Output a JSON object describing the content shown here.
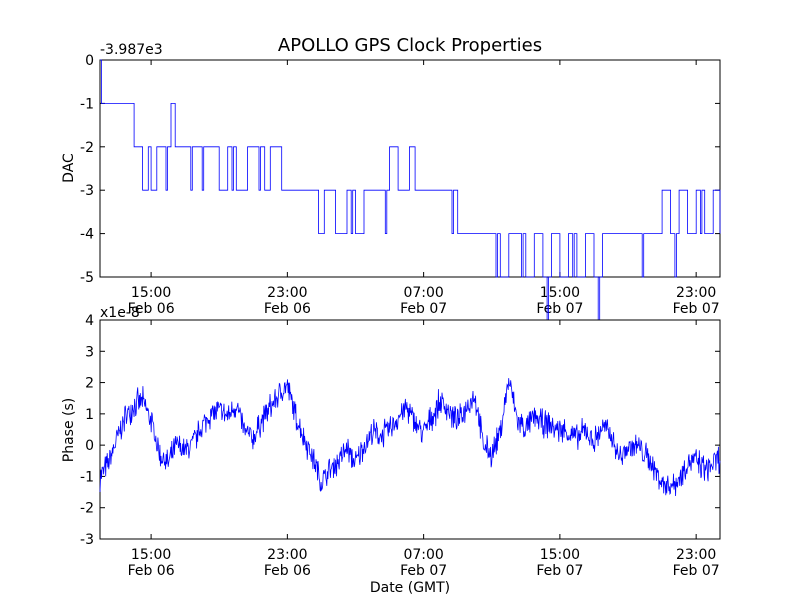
{
  "figure": {
    "title": "APOLLO GPS Clock Properties",
    "line_color": "#0000ff",
    "line_color_subplot2": "#0000ff"
  },
  "chart_data": [
    {
      "type": "line",
      "ylabel": "DAC",
      "xlabel": "",
      "offset_label": "-3.987e3",
      "ylim": [
        -5,
        0
      ],
      "yticks": [
        0,
        -1,
        -2,
        -3,
        -4,
        -5
      ],
      "ytick_labels": [
        "0",
        "-1",
        "-2",
        "-3",
        "-4",
        "-5"
      ],
      "xlim_hours": [
        12,
        36.4
      ],
      "xtick_labels": [
        {
          "time": "15:00",
          "date": "Feb 06"
        },
        {
          "time": "23:00",
          "date": "Feb 06"
        },
        {
          "time": "07:00",
          "date": "Feb 07"
        },
        {
          "time": "15:00",
          "date": "Feb 07"
        },
        {
          "time": "23:00",
          "date": "Feb 07"
        }
      ],
      "grid": false,
      "series": [
        {
          "x": [
            "2014-02-06T12:00",
            "2014-02-06T12:05",
            "2014-02-06T13:00",
            "2014-02-06T14:00",
            "2014-02-06T14:15",
            "2014-02-06T14:30",
            "2014-02-06T14:50",
            "2014-02-06T15:00",
            "2014-02-06T15:20",
            "2014-02-06T15:35",
            "2014-02-06T16:10",
            "2014-02-06T16:25",
            "2014-02-06T17:00",
            "2014-02-06T18:40",
            "2014-02-06T19:00",
            "2014-02-06T19:30",
            "2014-02-06T20:00",
            "2014-02-06T20:40",
            "2014-02-06T21:00",
            "2014-02-06T21:40",
            "2014-02-06T22:00",
            "2014-02-06T22:40",
            "2014-02-06T23:00",
            "2014-02-07T00:00",
            "2014-02-07T00:50",
            "2014-02-07T01:10",
            "2014-02-07T01:50",
            "2014-02-07T02:30",
            "2014-02-07T03:00",
            "2014-02-07T03:30",
            "2014-02-07T04:30",
            "2014-02-07T05:00",
            "2014-02-07T05:30",
            "2014-02-07T06:10",
            "2014-02-07T06:30",
            "2014-02-07T07:30",
            "2014-02-07T08:20",
            "2014-02-07T09:00",
            "2014-02-07T10:00",
            "2014-02-07T11:00",
            "2014-02-07T11:30",
            "2014-02-07T12:00",
            "2014-02-07T12:30",
            "2014-02-07T13:00",
            "2014-02-07T13:30",
            "2014-02-07T14:00",
            "2014-02-07T14:30",
            "2014-02-07T15:00",
            "2014-02-07T15:30",
            "2014-02-07T16:00",
            "2014-02-07T16:30",
            "2014-02-07T17:00",
            "2014-02-07T17:30",
            "2014-02-07T18:30",
            "2014-02-07T19:30",
            "2014-02-07T20:30",
            "2014-02-07T21:00",
            "2014-02-07T21:30",
            "2014-02-07T22:00",
            "2014-02-07T22:30",
            "2014-02-07T23:00",
            "2014-02-07T23:30",
            "2014-02-08T00:00",
            "2014-02-08T00:24"
          ],
          "y": [
            0,
            -1,
            -1,
            -2,
            -2,
            -3,
            -2,
            -3,
            -2,
            -2,
            -1,
            -2,
            -2,
            -2,
            -3,
            -2,
            -3,
            -2,
            -2,
            -3,
            -2,
            -3,
            -3,
            -3,
            -4,
            -3,
            -4,
            -3,
            -4,
            -3,
            -3,
            -2,
            -3,
            -2,
            -3,
            -3,
            -3,
            -4,
            -4,
            -4,
            -5,
            -4,
            -4,
            -5,
            -4,
            -5,
            -4,
            -5,
            -4,
            -5,
            -4,
            -5,
            -4,
            -4,
            -4,
            -4,
            -3,
            -4,
            -3,
            -4,
            -3,
            -4,
            -3,
            -4
          ]
        }
      ]
    },
    {
      "type": "line",
      "ylabel": "Phase (s)",
      "xlabel": "Date (GMT)",
      "offset_label": "x1e-8",
      "ylim": [
        -3,
        4
      ],
      "yticks": [
        4,
        3,
        2,
        1,
        0,
        -1,
        -2,
        -3
      ],
      "ytick_labels": [
        "4",
        "3",
        "2",
        "1",
        "0",
        "-1",
        "-2",
        "-3"
      ],
      "xlim_hours": [
        12,
        36.4
      ],
      "xtick_labels": [
        {
          "time": "15:00",
          "date": "Feb 06"
        },
        {
          "time": "23:00",
          "date": "Feb 06"
        },
        {
          "time": "07:00",
          "date": "Feb 07"
        },
        {
          "time": "15:00",
          "date": "Feb 07"
        },
        {
          "time": "23:00",
          "date": "Feb 07"
        }
      ],
      "grid": false,
      "series": [
        {
          "x": [
            "2014-02-06T12:00",
            "2014-02-06T12:30",
            "2014-02-06T13:00",
            "2014-02-06T13:30",
            "2014-02-06T14:00",
            "2014-02-06T14:30",
            "2014-02-06T15:00",
            "2014-02-06T15:30",
            "2014-02-06T16:00",
            "2014-02-06T16:30",
            "2014-02-06T17:00",
            "2014-02-06T17:30",
            "2014-02-06T18:00",
            "2014-02-06T18:30",
            "2014-02-06T19:00",
            "2014-02-06T19:30",
            "2014-02-06T20:00",
            "2014-02-06T20:30",
            "2014-02-06T21:00",
            "2014-02-06T21:30",
            "2014-02-06T22:00",
            "2014-02-06T22:30",
            "2014-02-06T23:00",
            "2014-02-06T23:30",
            "2014-02-07T00:00",
            "2014-02-07T00:30",
            "2014-02-07T01:00",
            "2014-02-07T01:30",
            "2014-02-07T02:00",
            "2014-02-07T02:30",
            "2014-02-07T03:00",
            "2014-02-07T03:30",
            "2014-02-07T04:00",
            "2014-02-07T04:30",
            "2014-02-07T05:00",
            "2014-02-07T05:30",
            "2014-02-07T06:00",
            "2014-02-07T06:30",
            "2014-02-07T07:00",
            "2014-02-07T07:30",
            "2014-02-07T08:00",
            "2014-02-07T08:30",
            "2014-02-07T09:00",
            "2014-02-07T09:30",
            "2014-02-07T10:00",
            "2014-02-07T10:30",
            "2014-02-07T11:00",
            "2014-02-07T11:30",
            "2014-02-07T12:00",
            "2014-02-07T12:30",
            "2014-02-07T13:00",
            "2014-02-07T13:30",
            "2014-02-07T14:00",
            "2014-02-07T14:30",
            "2014-02-07T15:00",
            "2014-02-07T15:30",
            "2014-02-07T16:00",
            "2014-02-07T16:30",
            "2014-02-07T17:00",
            "2014-02-07T17:30",
            "2014-02-07T18:00",
            "2014-02-07T18:30",
            "2014-02-07T19:00",
            "2014-02-07T19:30",
            "2014-02-07T20:00",
            "2014-02-07T20:30",
            "2014-02-07T21:00",
            "2014-02-07T21:30",
            "2014-02-07T22:00",
            "2014-02-07T22:30",
            "2014-02-07T23:00",
            "2014-02-07T23:30",
            "2014-02-08T00:00",
            "2014-02-08T00:24"
          ],
          "y": [
            -1.0,
            -0.6,
            0.2,
            0.9,
            1.3,
            1.4,
            0.8,
            -0.3,
            -0.6,
            0.0,
            -0.2,
            0.1,
            0.6,
            1.0,
            1.1,
            0.9,
            1.3,
            0.4,
            0.2,
            0.8,
            1.2,
            1.6,
            1.9,
            0.9,
            0.2,
            -0.4,
            -1.2,
            -0.8,
            -0.5,
            -0.1,
            -0.6,
            0.0,
            0.4,
            0.3,
            0.5,
            0.9,
            1.2,
            0.7,
            0.4,
            0.9,
            1.4,
            1.1,
            0.7,
            1.2,
            1.6,
            0.0,
            -0.3,
            0.4,
            2.1,
            0.8,
            0.5,
            0.9,
            0.7,
            0.6,
            0.5,
            0.4,
            0.2,
            0.5,
            0.1,
            0.6,
            0.3,
            -0.4,
            -0.1,
            0.0,
            -0.3,
            -0.7,
            -1.2,
            -1.3,
            -1.1,
            -0.5,
            -0.5,
            -0.8,
            -0.6,
            -0.4
          ]
        }
      ]
    }
  ]
}
